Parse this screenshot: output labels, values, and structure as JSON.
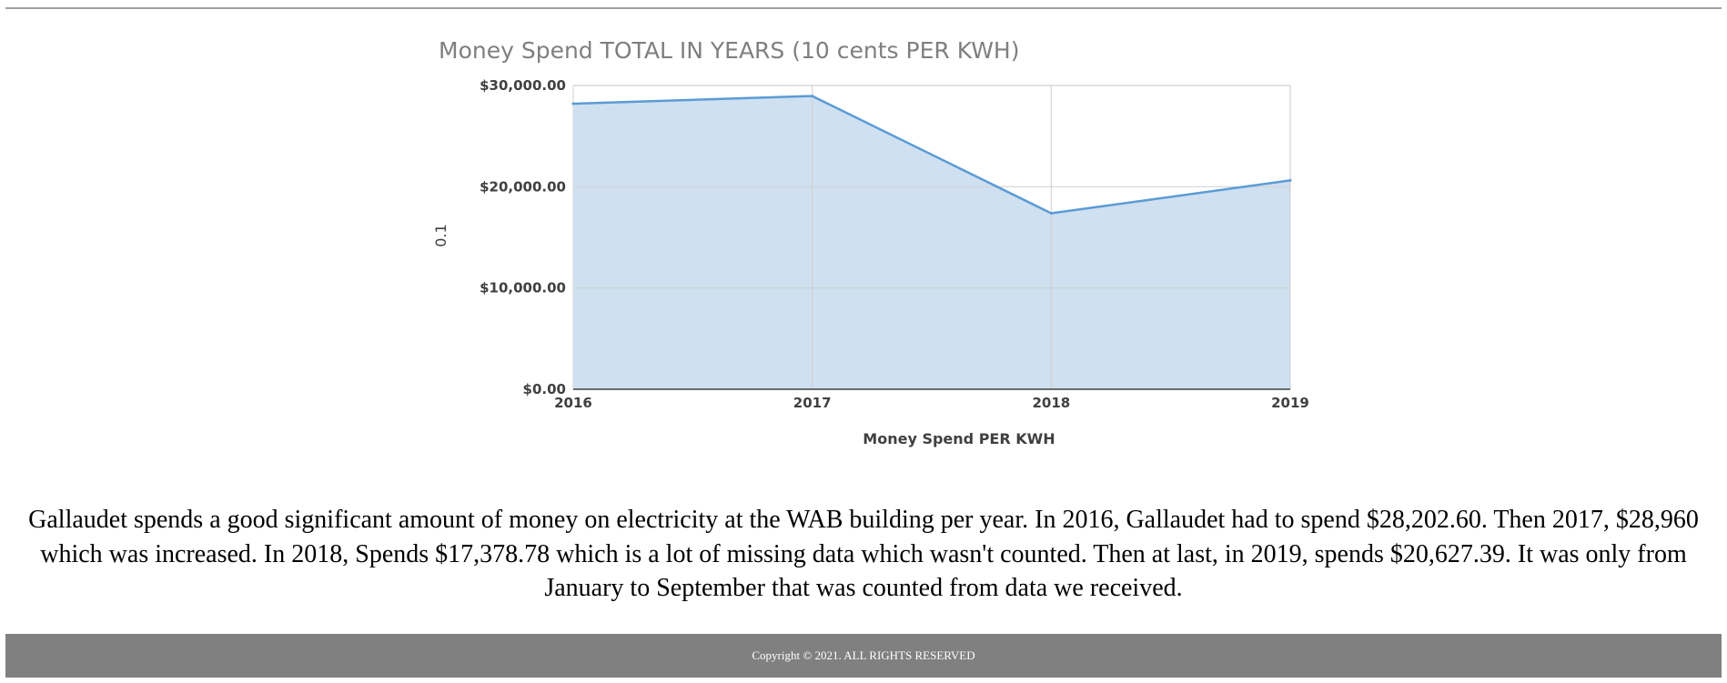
{
  "chart_data": {
    "type": "area",
    "title": "Money Spend TOTAL IN YEARS (10 cents PER KWH)",
    "xlabel": "Money Spend PER KWH",
    "ylabel": "0.1",
    "categories": [
      "2016",
      "2017",
      "2018",
      "2019"
    ],
    "values": [
      28202.6,
      28960,
      17378.78,
      20627.39
    ],
    "ylim": [
      0,
      30000
    ],
    "yticks": [
      0,
      10000,
      20000,
      30000
    ],
    "ytick_labels": [
      "$0.00",
      "$10,000.00",
      "$20,000.00",
      "$30,000.00"
    ],
    "grid": true,
    "colors": {
      "line": "#5b9bd5",
      "fill": "#cfe0f1",
      "grid": "#d0d0d0",
      "axis": "#404040"
    }
  },
  "description": "Gallaudet spends a good significant amount of money on electricity at the WAB building per year. In 2016, Gallaudet had to spend $28,202.60. Then 2017, $28,960 which was increased. In 2018, Spends $17,378.78 which is a lot of missing data which wasn't counted. Then at last, in 2019, spends $20,627.39. It was only from January to September that was counted from data we received.",
  "footer": {
    "copyright": "Copyright © 2021. ALL RIGHTS RESERVED",
    "background": "#808080"
  }
}
